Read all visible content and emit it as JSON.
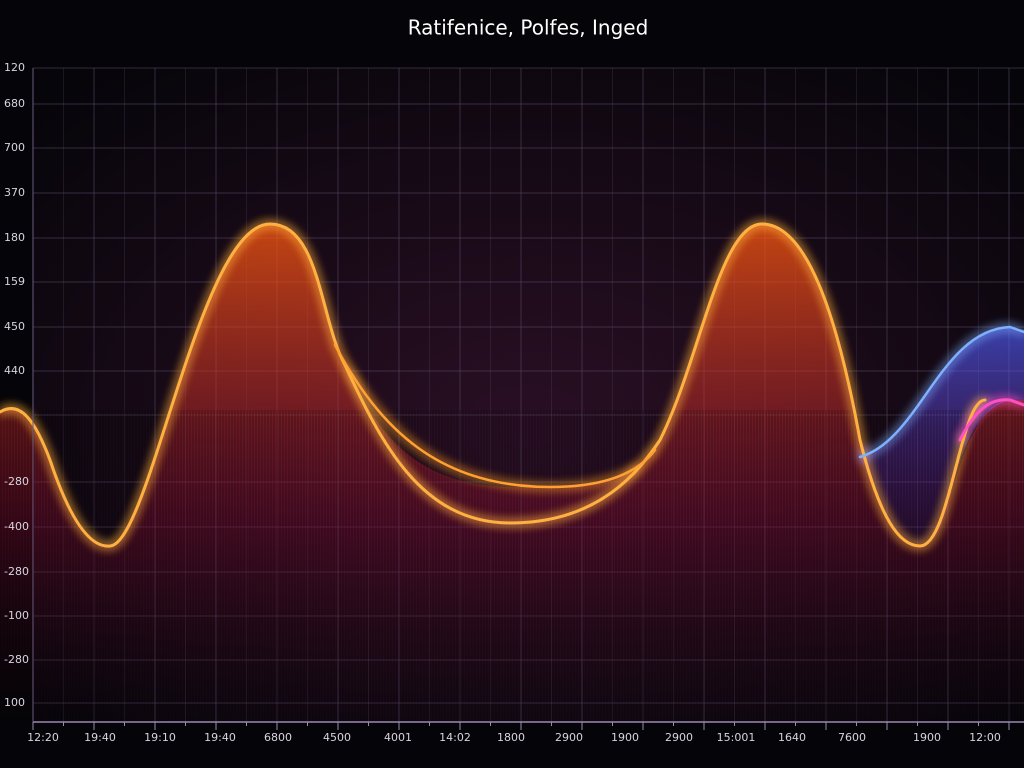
{
  "header": {
    "title": "Ratifenice, Polfes, Inged"
  },
  "axes": {
    "y_labels": [
      "120",
      "680",
      "700",
      "370",
      "180",
      "159",
      "450",
      "440",
      "-280",
      "-400",
      "-280",
      "-100",
      "-280",
      "100"
    ],
    "x_labels": [
      "12:20",
      "19:40",
      "19:10",
      "19:40",
      "6800",
      "4500",
      "4001",
      "14:02",
      "1800",
      "2900",
      "1900",
      "2900",
      "15:001",
      "1640",
      "7600",
      "1900",
      "12:00"
    ]
  }
}
